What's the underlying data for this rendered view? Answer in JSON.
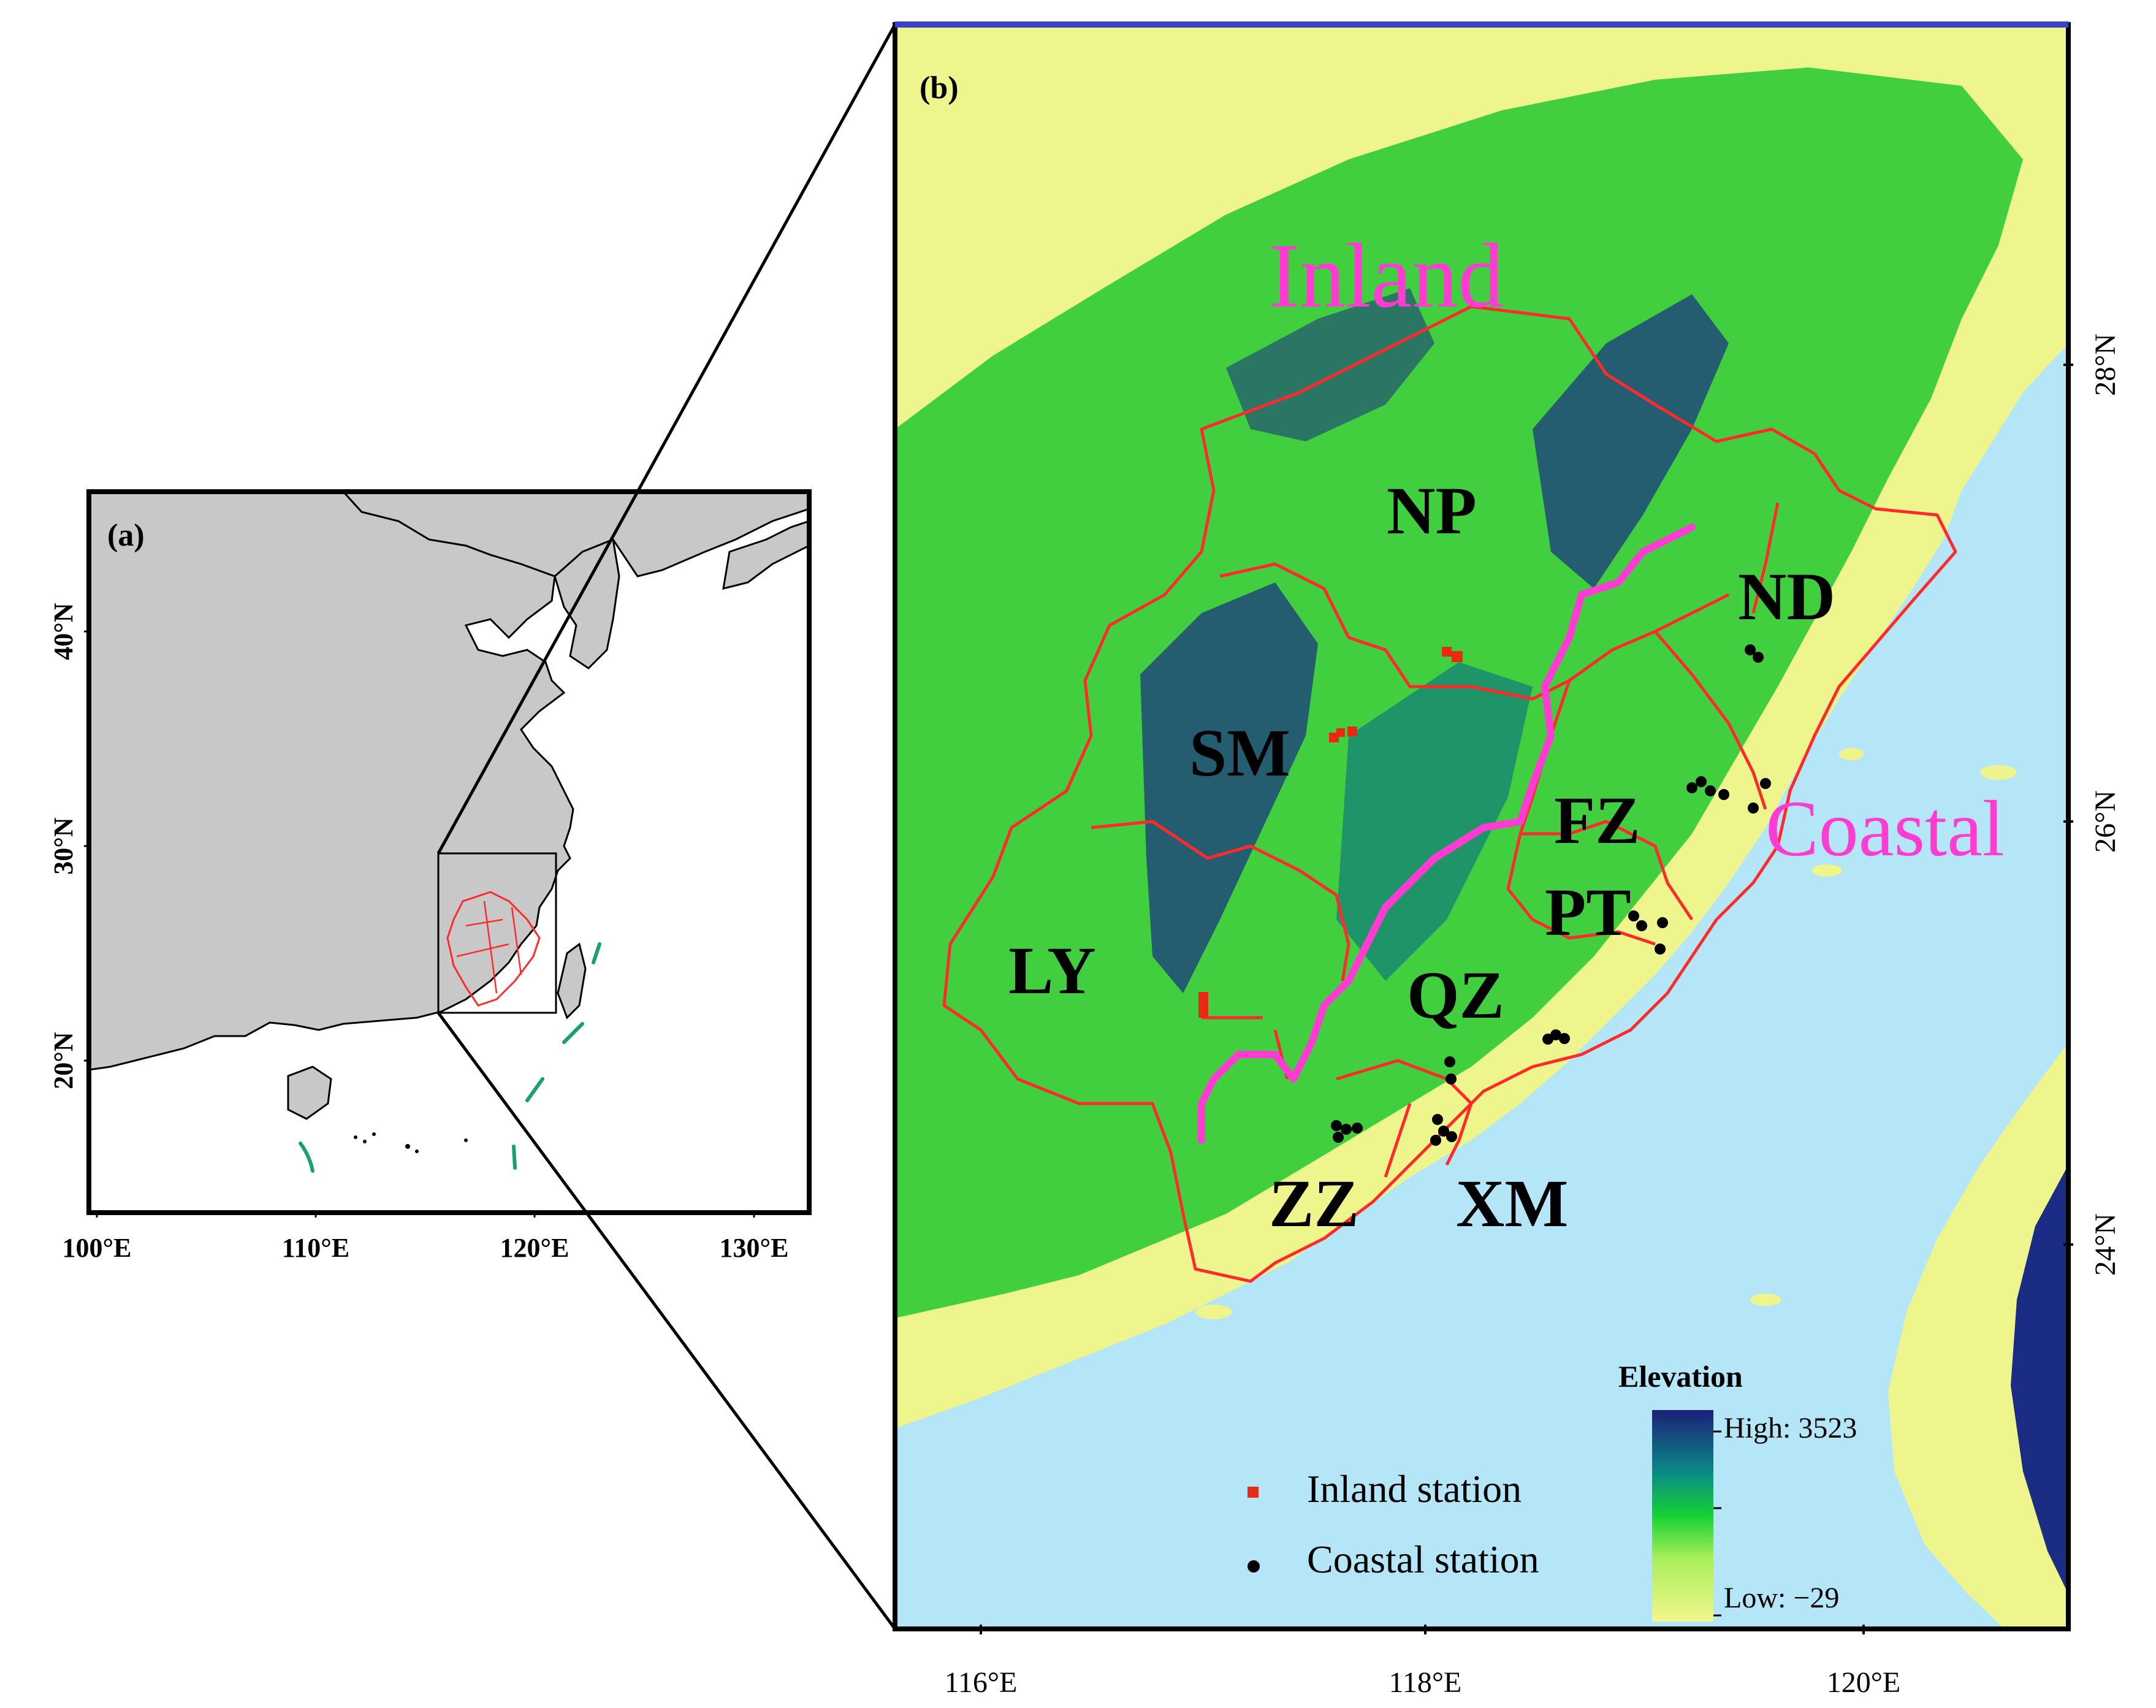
{
  "panel_a": {
    "label": "(a)",
    "lat_ticks": [
      "40°N",
      "30°N",
      "20°N"
    ],
    "lon_ticks": [
      "100°E",
      "110°E",
      "120°E",
      "130°E"
    ]
  },
  "panel_b": {
    "label": "(b)",
    "zones": {
      "inland": "Inland",
      "coastal": "Coastal"
    },
    "cities": [
      "NP",
      "ND",
      "SM",
      "FZ",
      "PT",
      "LY",
      "QZ",
      "ZZ",
      "XM"
    ],
    "lat_ticks": [
      "28°N",
      "26°N",
      "24°N"
    ],
    "lon_ticks": [
      "116°E",
      "118°E",
      "120°E"
    ],
    "legend": {
      "title": "Elevation",
      "high": "High: 3523",
      "low": "Low: −29",
      "inland_station": "Inland  station",
      "coastal_station": "Coastal station"
    }
  },
  "colors": {
    "land_grey": "#c8c8c8",
    "sea": "#b4e6f8",
    "lowland": "#eef58c",
    "midland": "#22c832",
    "highland": "#1a2c84",
    "city_boundary": "#ff2a2a",
    "zone_divider": "#ff3cd2",
    "inland_station": "#e82a14",
    "coastal_station": "#000000",
    "sea_islands_dash": "#1aa070"
  }
}
